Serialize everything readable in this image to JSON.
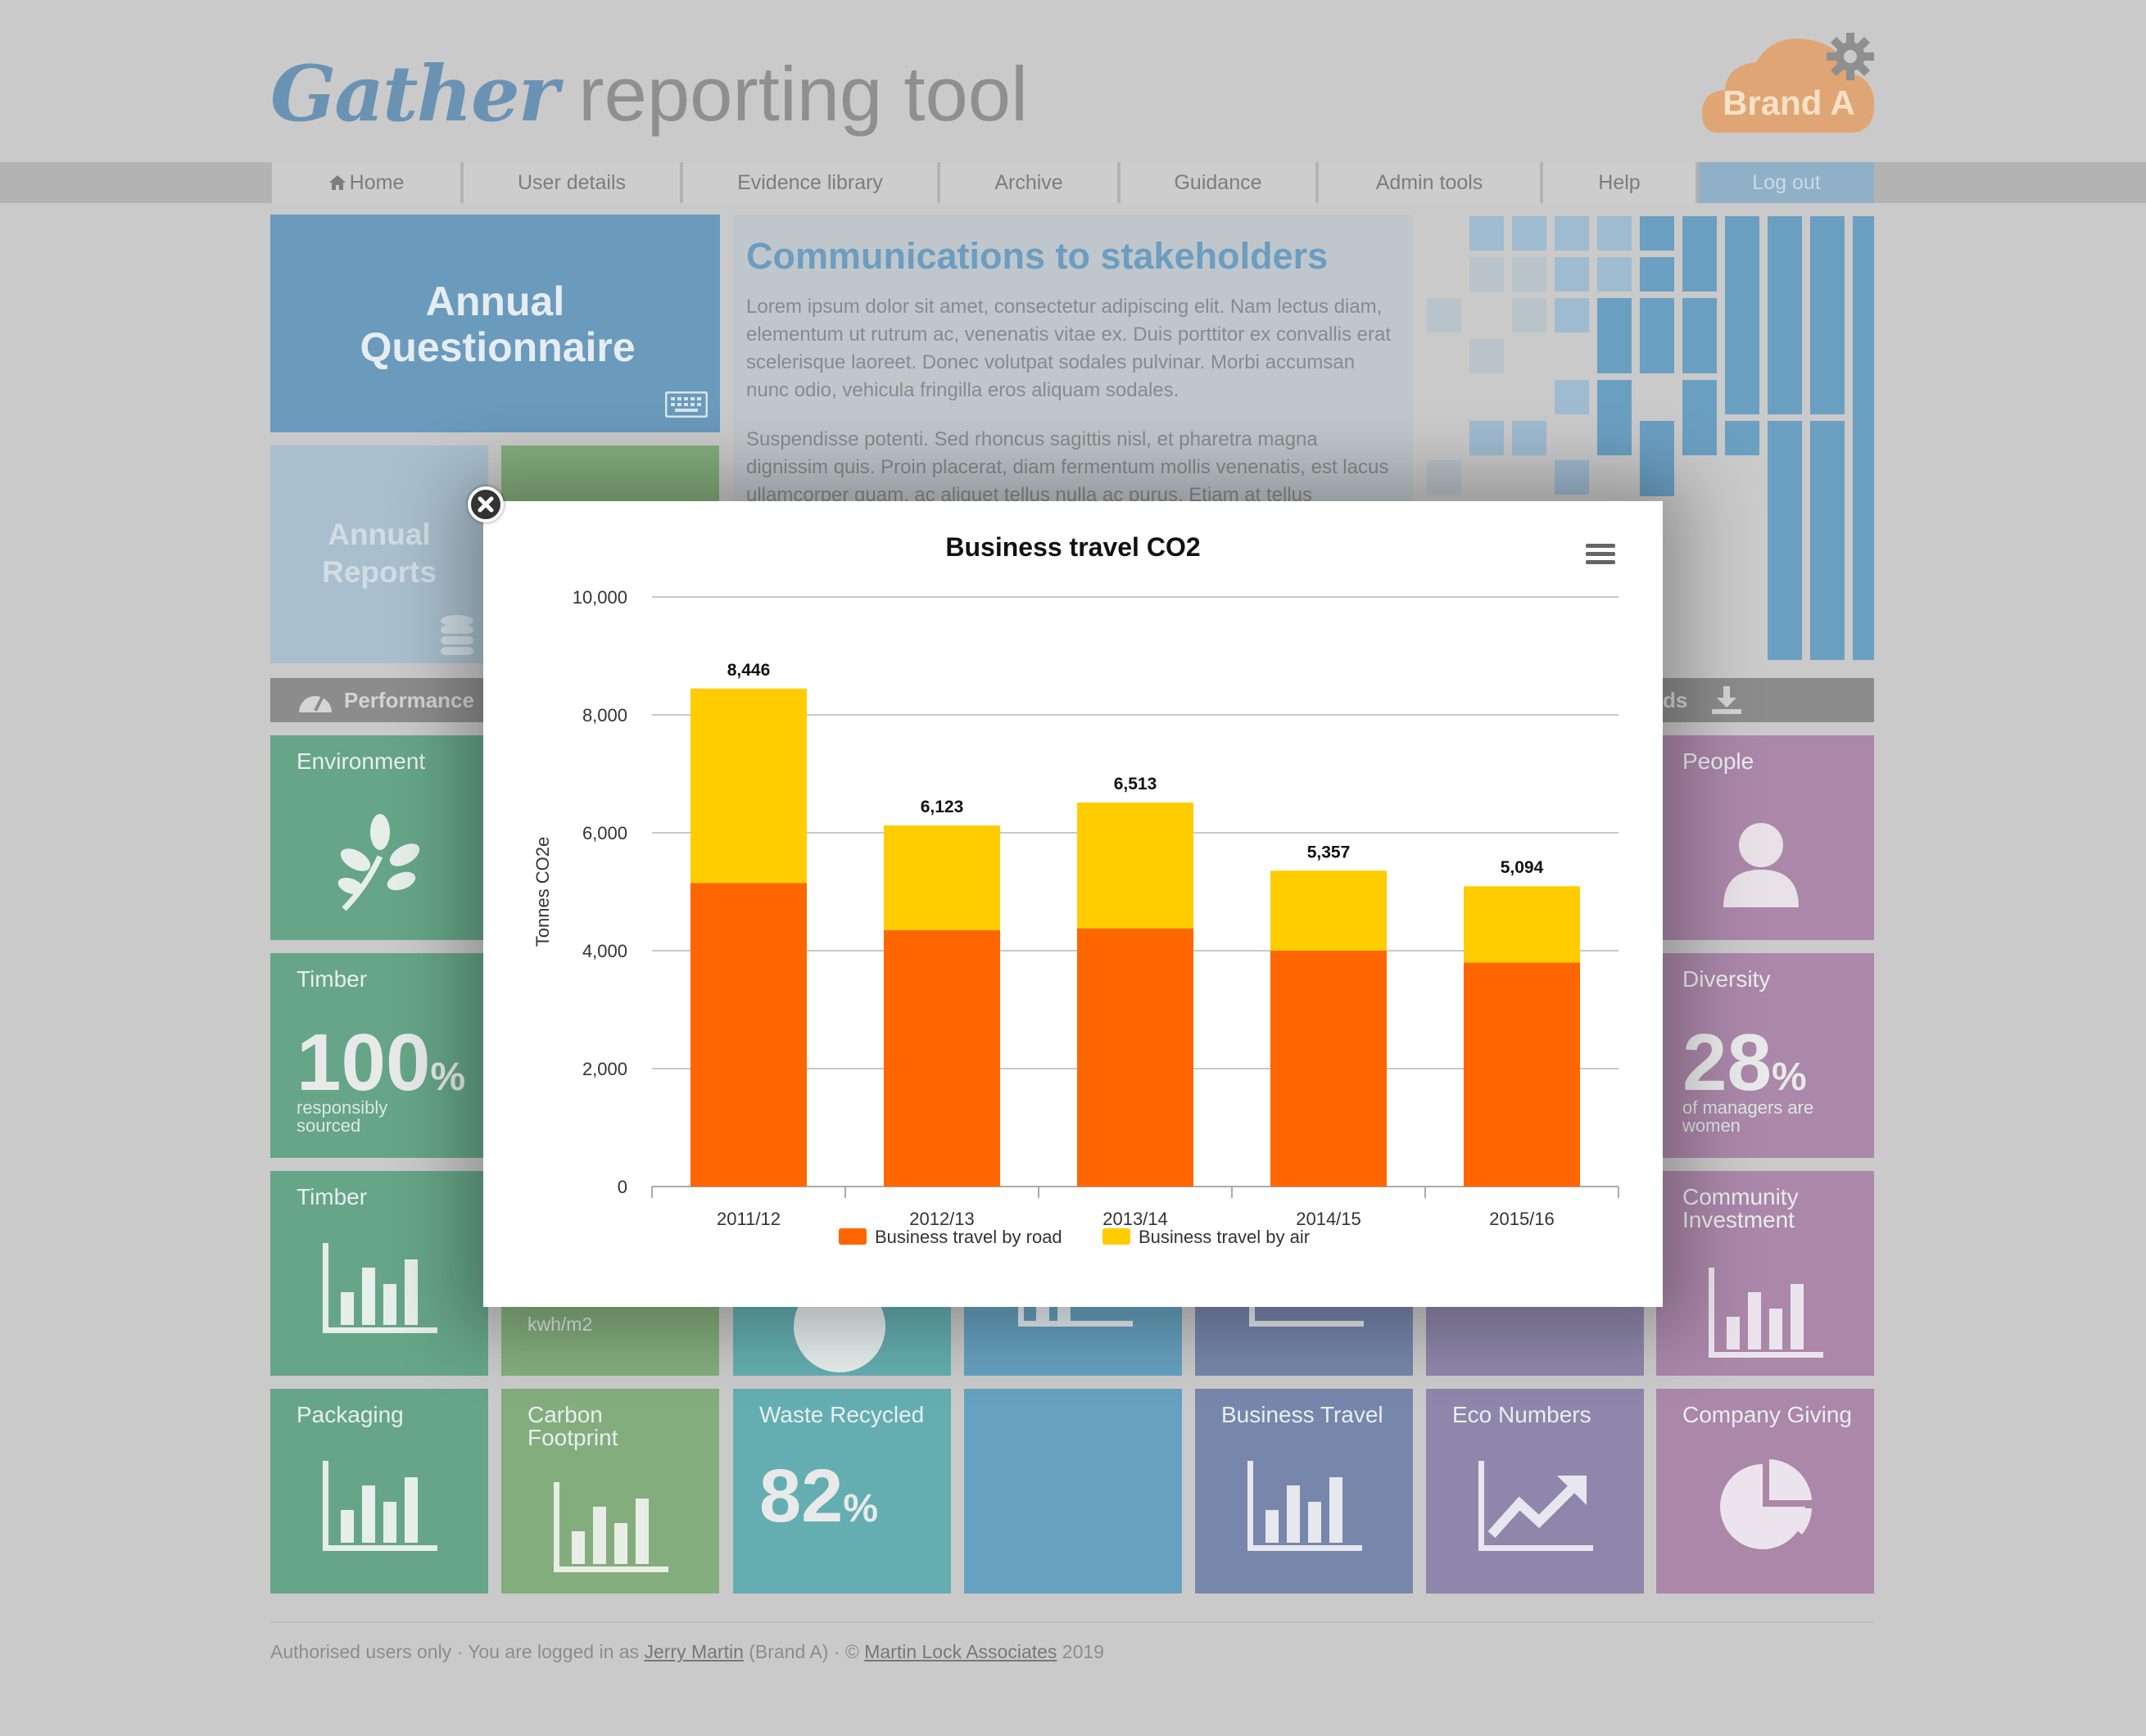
{
  "header": {
    "brand_word": "Gather",
    "title_rest": "reporting tool",
    "badge_label": "Brand A",
    "badge_icon": "gear-icon"
  },
  "nav": {
    "items": [
      {
        "label": "Home",
        "icon": "home-icon"
      },
      {
        "label": "User details"
      },
      {
        "label": "Evidence library"
      },
      {
        "label": "Archive"
      },
      {
        "label": "Guidance"
      },
      {
        "label": "Admin tools"
      },
      {
        "label": "Help"
      },
      {
        "label": "Log out"
      }
    ]
  },
  "top_tiles": {
    "questionnaire": "Annual Questionnaire",
    "reports": "Annual Reports"
  },
  "comms": {
    "title": "Communications to stakeholders",
    "paragraphs": [
      "Lorem ipsum dolor sit amet, consectetur adipiscing elit. Nam lectus diam, elementum ut rutrum ac, venenatis vitae ex. Duis porttitor ex convallis erat scelerisque laoreet. Donec volutpat sodales pulvinar. Morbi accumsan nunc odio, vehicula fringilla eros aliquam sodales.",
      "Suspendisse potenti. Sed rhoncus sagittis nisl, et pharetra magna dignissim quis. Proin placerat, diam fermentum mollis venenatis, est lacus ullamcorper quam, ac aliquet tellus nulla ac purus. Etiam at tellus"
    ]
  },
  "performance_bar": {
    "label": "Performance",
    "right_label": "ds"
  },
  "tiles": {
    "environment": "Environment",
    "people": "People",
    "timber1": {
      "label": "Timber",
      "value": "100",
      "unit": "%",
      "note1": "responsibly",
      "note2": "sourced"
    },
    "diversity": {
      "label": "Diversity",
      "value": "28",
      "unit": "%",
      "note1": "of managers are",
      "note2": "women"
    },
    "timber2": "Timber",
    "energy_unit": "kwh/m2",
    "community": "Community Investment",
    "packaging": "Packaging",
    "carbon": "Carbon Footprint",
    "waste": {
      "label": "Waste Recycled",
      "value": "82",
      "unit": "%"
    },
    "business_travel": "Business Travel",
    "eco_numbers": "Eco Numbers",
    "company_giving": "Company Giving"
  },
  "footer": {
    "prefix": "Authorised users only · You are logged in as ",
    "user": "Jerry Martin",
    "mid": " (Brand A) · © ",
    "company": "Martin Lock Associates",
    "year": " 2019"
  },
  "colors": {
    "road": "#ff6600",
    "air": "#ffcc00",
    "accent": "#6a9abc"
  },
  "chart_data": {
    "type": "bar",
    "stacked": true,
    "title": "Business travel CO2",
    "xlabel": "",
    "ylabel": "Tonnes CO2e",
    "categories": [
      "2011/12",
      "2012/13",
      "2013/14",
      "2014/15",
      "2015/16"
    ],
    "series": [
      {
        "name": "Business travel by road",
        "values": [
          5150,
          4350,
          4380,
          4000,
          3800
        ]
      },
      {
        "name": "Business travel by air",
        "values": [
          3296,
          1773,
          2133,
          1357,
          1294
        ]
      }
    ],
    "totals": [
      8446,
      6123,
      6513,
      5357,
      5094
    ],
    "total_labels": [
      "8,446",
      "6,123",
      "6,513",
      "5,357",
      "5,094"
    ],
    "ylim": [
      0,
      10000
    ],
    "yticks": [
      0,
      2000,
      4000,
      6000,
      8000,
      10000
    ],
    "ytick_labels": [
      "0",
      "2,000",
      "4,000",
      "6,000",
      "8,000",
      "10,000"
    ],
    "grid": true,
    "legend": "bottom-center"
  }
}
